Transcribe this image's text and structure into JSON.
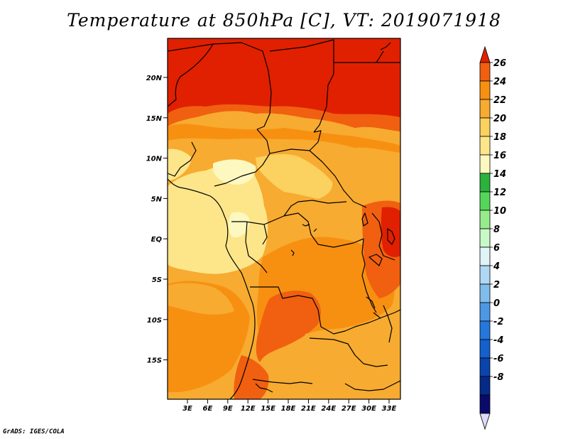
{
  "title": "Temperature at 850hPa [C], VT: 2019071918",
  "credit": "GrADS: IGES/COLA",
  "map": {
    "lat_labels": [
      "20N",
      "15N",
      "10N",
      "5N",
      "EQ",
      "5S",
      "10S",
      "15S"
    ],
    "lon_labels": [
      "3E",
      "6E",
      "9E",
      "12E",
      "15E",
      "18E",
      "21E",
      "24E",
      "27E",
      "30E",
      "33E"
    ]
  },
  "colorbar": {
    "labels": [
      "26",
      "24",
      "22",
      "20",
      "18",
      "16",
      "14",
      "12",
      "10",
      "8",
      "6",
      "4",
      "2",
      "0",
      "-2",
      "-4",
      "-6",
      "-8"
    ],
    "colors": [
      "#e02000",
      "#f06010",
      "#f79010",
      "#f7ab30",
      "#fbd160",
      "#fde68a",
      "#fdf8c0",
      "#2ab23c",
      "#54d65a",
      "#96ec8c",
      "#c8f8c8",
      "#e0f4f8",
      "#b0d8f4",
      "#80bcec",
      "#4c98e4",
      "#2478dc",
      "#1460cc",
      "#0a44ac",
      "#062a88",
      "#0a0a6a",
      "#dcdcf8"
    ]
  }
}
